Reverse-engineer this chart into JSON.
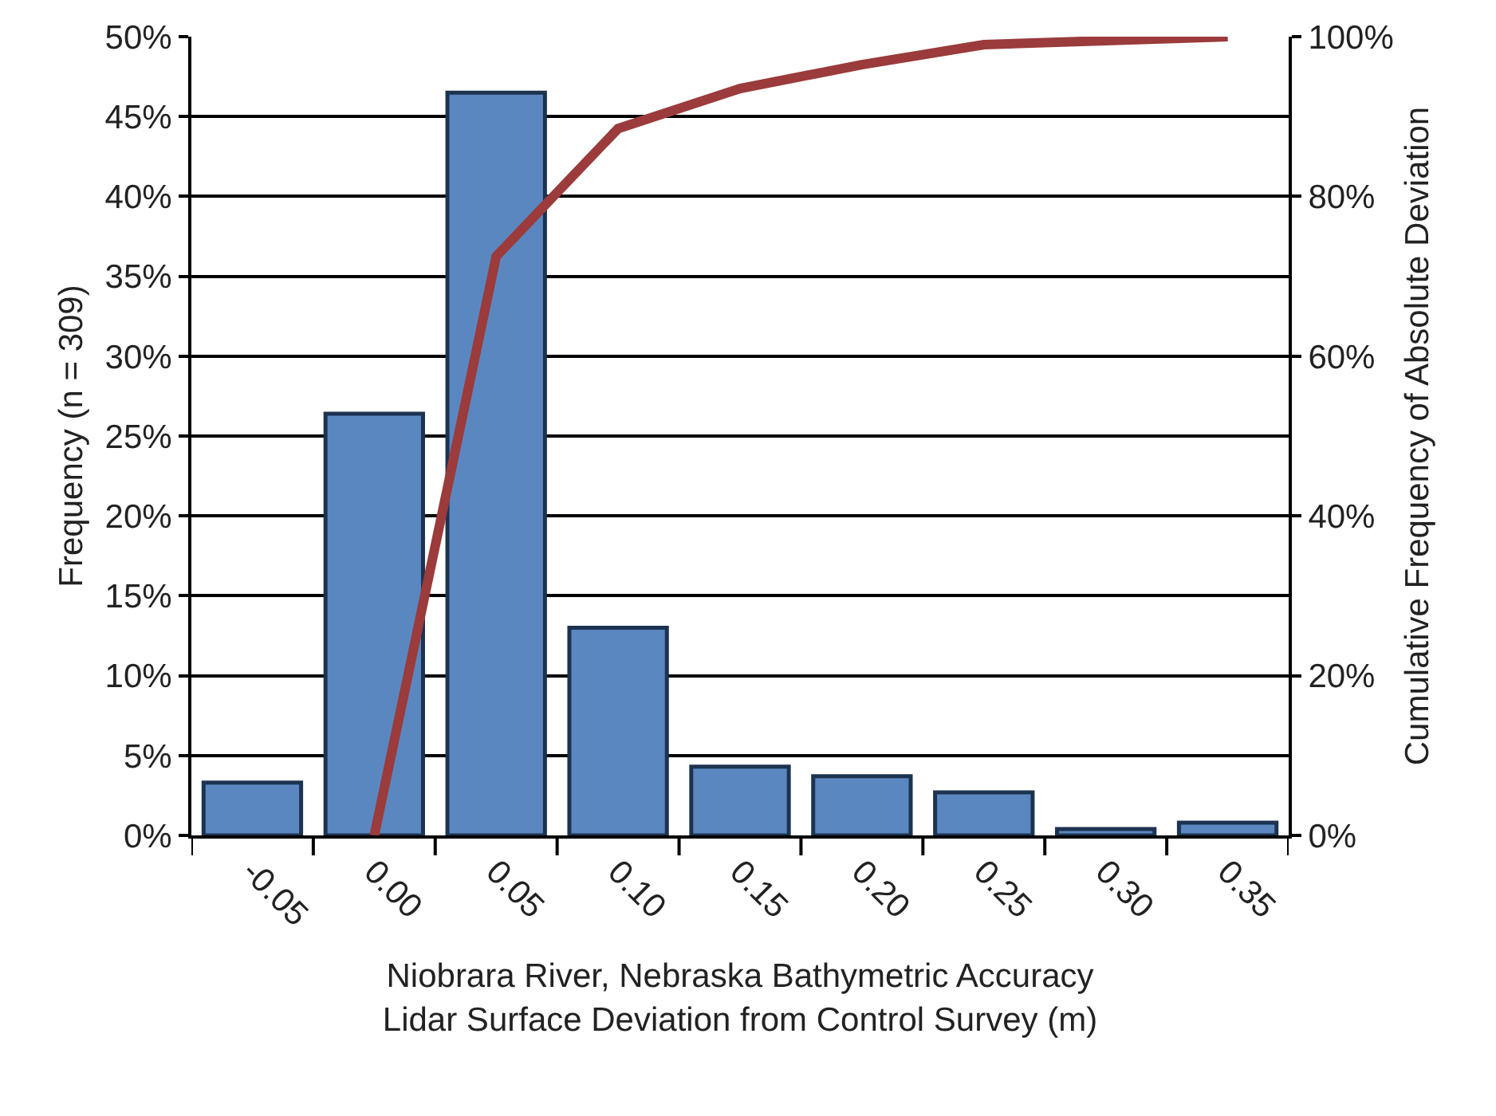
{
  "chart_data": {
    "type": "bar",
    "xlabel": "Niobrara River, Nebraska Bathymetric Accuracy\nLidar Surface Deviation from Control Survey (m)",
    "ylabel": "Frequency (n = 309)",
    "y2label": "Cumulative Frequency of Absolute Deviation",
    "categories": [
      "-0.05",
      "0.00",
      "0.05",
      "0.10",
      "0.15",
      "0.20",
      "0.25",
      "0.30",
      "0.35"
    ],
    "series": [
      {
        "color": "#5b87c0",
        "values": [
          3.3,
          26.4,
          46.5,
          13.0,
          4.3,
          3.7,
          2.7,
          0.4,
          0.8
        ]
      },
      {
        "type": "line",
        "axis": "y2",
        "color": "#9b3b3b",
        "values": [
          null,
          0,
          72.5,
          88.5,
          93.5,
          96.5,
          99,
          99.5,
          100
        ]
      }
    ],
    "ylim": [
      0,
      50
    ],
    "yticks": [
      {
        "value": 0,
        "label": "0%"
      },
      {
        "value": 5,
        "label": "5%"
      },
      {
        "value": 10,
        "label": "10%"
      },
      {
        "value": 15,
        "label": "15%"
      },
      {
        "value": 20,
        "label": "20%"
      },
      {
        "value": 25,
        "label": "25%"
      },
      {
        "value": 30,
        "label": "30%"
      },
      {
        "value": 35,
        "label": "35%"
      },
      {
        "value": 40,
        "label": "40%"
      },
      {
        "value": 45,
        "label": "45%"
      },
      {
        "value": 50,
        "label": "50%"
      }
    ],
    "y2lim": [
      0,
      100
    ],
    "y2ticks": [
      {
        "value": 0,
        "label": "0%"
      },
      {
        "value": 20,
        "label": "20%"
      },
      {
        "value": 40,
        "label": "40%"
      },
      {
        "value": 60,
        "label": "60%"
      },
      {
        "value": 80,
        "label": "80%"
      },
      {
        "value": 100,
        "label": "100%"
      }
    ],
    "grid": "y",
    "marker": "none",
    "line_style": "solid"
  }
}
